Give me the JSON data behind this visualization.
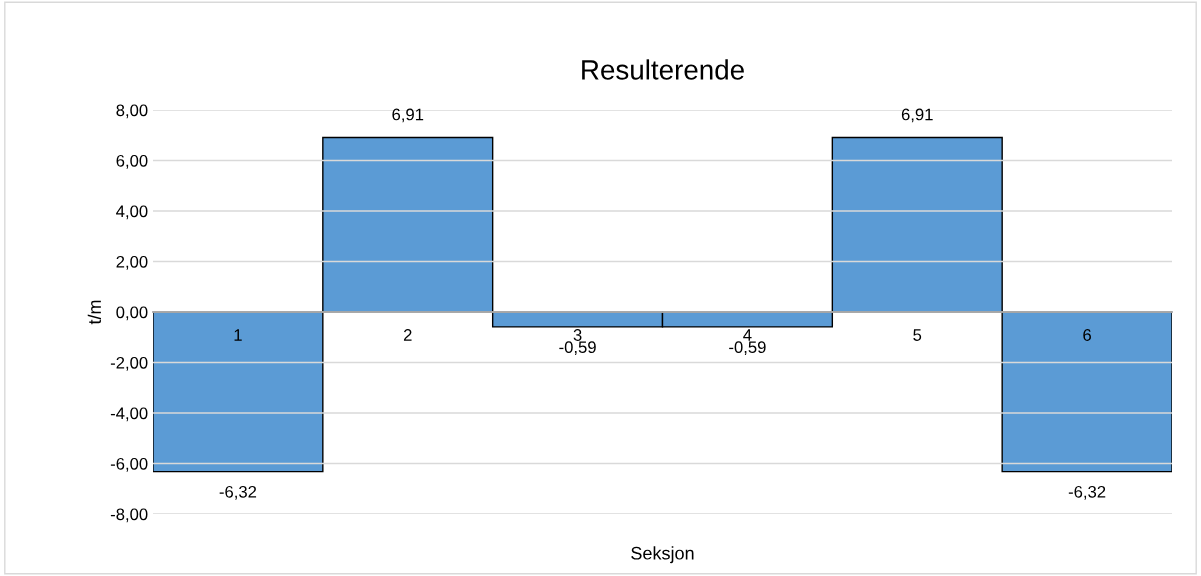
{
  "chart_data": {
    "type": "bar",
    "title": "Resulterende",
    "xlabel": "Seksjon",
    "ylabel": "t/m",
    "categories": [
      "1",
      "2",
      "3",
      "4",
      "5",
      "6"
    ],
    "values": [
      -6.32,
      6.91,
      -0.59,
      -0.59,
      6.91,
      -6.32
    ],
    "value_labels": [
      "-6,32",
      "6,91",
      "-0,59",
      "-0,59",
      "6,91",
      "-6,32"
    ],
    "color": "#5b9bd5",
    "ylim": [
      -8,
      8
    ],
    "yticks": [
      {
        "value": -8,
        "label": "-8,00"
      },
      {
        "value": -6,
        "label": "-6,00"
      },
      {
        "value": -4,
        "label": "-4,00"
      },
      {
        "value": -2,
        "label": "-2,00"
      },
      {
        "value": 0,
        "label": "0,00"
      },
      {
        "value": 2,
        "label": "2,00"
      },
      {
        "value": 4,
        "label": "4,00"
      },
      {
        "value": 6,
        "label": "6,00"
      },
      {
        "value": 8,
        "label": "8,00"
      }
    ],
    "grid": "y"
  }
}
